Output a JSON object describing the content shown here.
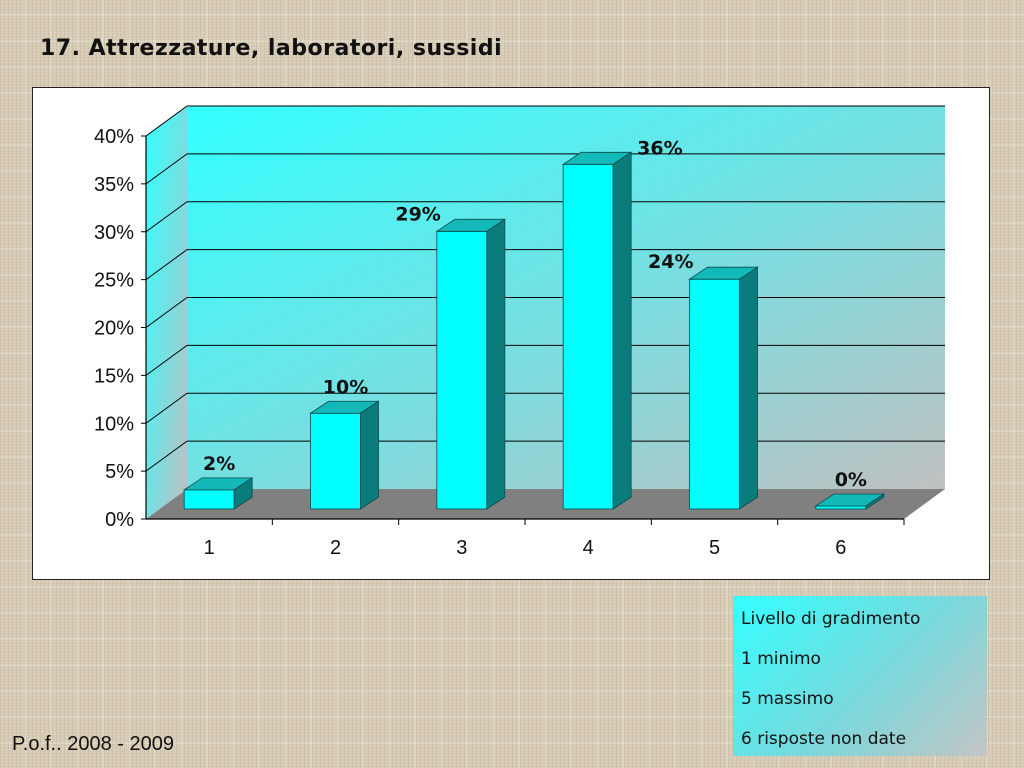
{
  "slide": {
    "title": "17. Attrezzature, laboratori, sussidi",
    "footer": "P.o.f.. 2008 - 2009"
  },
  "legend": {
    "lines": [
      "Livello di gradimento",
      "1 minimo",
      "5 massimo",
      "6 risposte non date"
    ]
  },
  "colors": {
    "bar_front": "#00ffff",
    "bar_top": "#13b8b8",
    "bar_side": "#0a7c7c",
    "floor": "#808080",
    "wall_top": "#33ffff",
    "wall_bottom": "#c0c0c0"
  },
  "chart_data": {
    "type": "bar",
    "style": "3d",
    "categories": [
      "1",
      "2",
      "3",
      "4",
      "5",
      "6"
    ],
    "values": [
      2,
      10,
      29,
      36,
      24,
      0
    ],
    "data_labels": [
      "2%",
      "10%",
      "29%",
      "36%",
      "24%",
      "0%"
    ],
    "y_ticks": [
      "0%",
      "5%",
      "10%",
      "15%",
      "20%",
      "25%",
      "30%",
      "35%",
      "40%"
    ],
    "ylim": [
      0,
      40
    ],
    "title": "",
    "xlabel": "",
    "ylabel": "",
    "grid": true
  }
}
